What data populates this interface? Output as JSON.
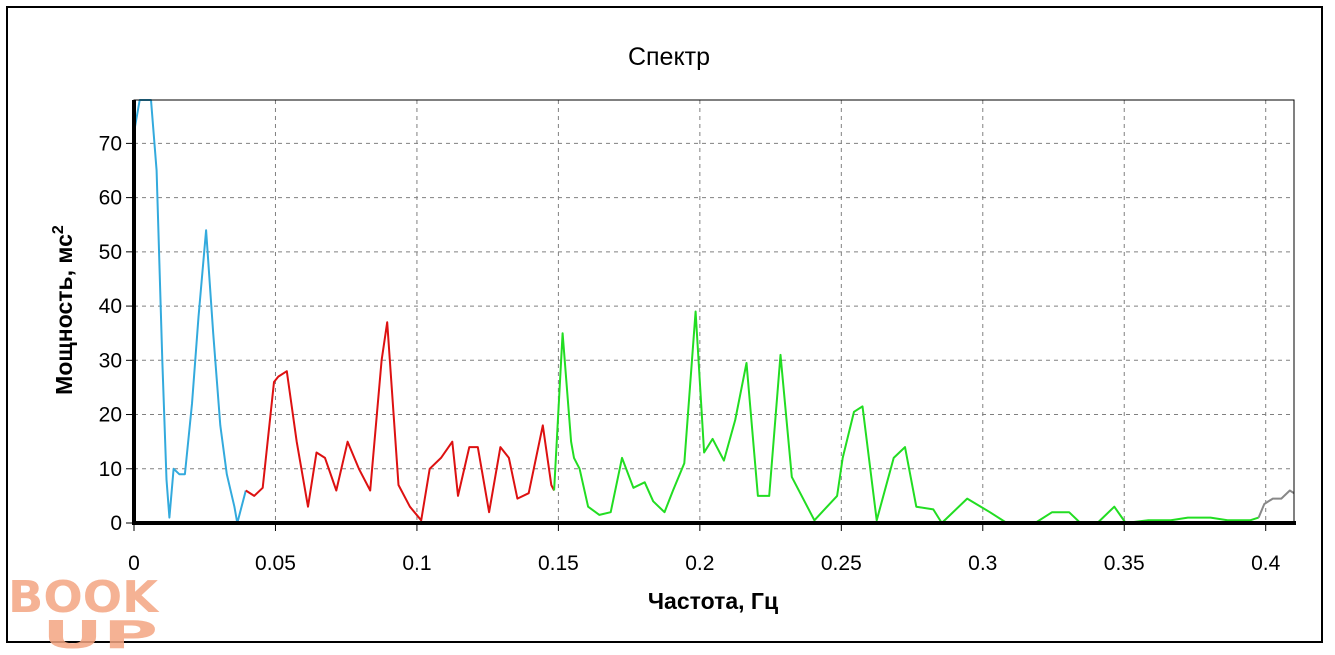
{
  "colors": {
    "vlf": "#33aadd",
    "lf": "#dd1111",
    "hf": "#22dd22",
    "tail": "#888888",
    "watermark": "#f4a582"
  },
  "watermark": {
    "line1": "BOOK",
    "line2": "UP"
  },
  "chart_data": {
    "type": "line",
    "title": "Спектр",
    "xlabel": "Частота, Гц",
    "ylabel": "Мощность, мс",
    "ylabel_superscript": "2",
    "xlim": [
      0,
      0.41
    ],
    "ylim": [
      0,
      78
    ],
    "xticks": [
      0,
      0.05,
      0.1,
      0.15,
      0.2,
      0.25,
      0.3,
      0.35,
      0.4
    ],
    "xtick_labels": [
      "0",
      "0.05",
      "0.1",
      "0.15",
      "0.2",
      "0.25",
      "0.3",
      "0.35",
      "0.4"
    ],
    "yticks": [
      0,
      10,
      20,
      30,
      40,
      50,
      60,
      70
    ],
    "ytick_labels": [
      "0",
      "10",
      "20",
      "30",
      "40",
      "50",
      "60",
      "70"
    ],
    "grid": true,
    "series": [
      {
        "color_key": "vlf",
        "x": [
          0.0,
          0.002,
          0.004,
          0.006,
          0.008,
          0.01,
          0.0115,
          0.0125,
          0.014,
          0.016,
          0.018,
          0.0205,
          0.0228,
          0.0255,
          0.028,
          0.0305,
          0.0328,
          0.0355,
          0.0365,
          0.0395
        ],
        "y": [
          72,
          78,
          78,
          78,
          65,
          30,
          8,
          1,
          10,
          9,
          9,
          22,
          38,
          54,
          35,
          18,
          9,
          3,
          0,
          6
        ]
      },
      {
        "color_key": "lf",
        "x": [
          0.0395,
          0.0425,
          0.0455,
          0.0495,
          0.051,
          0.054,
          0.0575,
          0.0615,
          0.0645,
          0.0675,
          0.0715,
          0.0755,
          0.0795,
          0.0835,
          0.0875,
          0.0895,
          0.0935,
          0.0975,
          0.1015,
          0.1045,
          0.1085,
          0.1125,
          0.1145,
          0.1185,
          0.1215,
          0.1255,
          0.1295,
          0.1325,
          0.1355,
          0.1395,
          0.1445,
          0.1475,
          0.1485
        ],
        "y": [
          6,
          5,
          6.5,
          26,
          27,
          28,
          15,
          3,
          13,
          12,
          6,
          15,
          10,
          6,
          30,
          37,
          7,
          3,
          0.5,
          10,
          12,
          15,
          5,
          14,
          14,
          2,
          14,
          12,
          4.5,
          5.5,
          18,
          7,
          6
        ]
      },
      {
        "color_key": "hf",
        "x": [
          0.1485,
          0.1515,
          0.1545,
          0.1555,
          0.1575,
          0.1605,
          0.1645,
          0.1685,
          0.1725,
          0.1765,
          0.1805,
          0.1835,
          0.1875,
          0.1905,
          0.1945,
          0.1985,
          0.2015,
          0.2045,
          0.2085,
          0.2125,
          0.2165,
          0.2205,
          0.2245,
          0.2285,
          0.2325,
          0.2405,
          0.2485,
          0.2505,
          0.2545,
          0.2575,
          0.2625,
          0.2685,
          0.2725,
          0.2765,
          0.2825,
          0.2855,
          0.2945,
          0.3025,
          0.3085,
          0.3185,
          0.3245,
          0.3305,
          0.3345,
          0.3405,
          0.3465,
          0.3505,
          0.3585,
          0.3665,
          0.3725,
          0.3805,
          0.3865,
          0.3945,
          0.3975
        ],
        "y": [
          6,
          35,
          15,
          12,
          10,
          3,
          1.5,
          2,
          12,
          6.5,
          7.5,
          4,
          2,
          6,
          11,
          39,
          13,
          15.5,
          11.5,
          19,
          29.5,
          5,
          5,
          31,
          8.5,
          0.5,
          5,
          12,
          20.5,
          21.5,
          0.5,
          12,
          14,
          3,
          2.5,
          0,
          4.5,
          2,
          0,
          0,
          2,
          2,
          0,
          0,
          3,
          0,
          0.5,
          0.5,
          1,
          1,
          0.5,
          0.5,
          1
        ]
      },
      {
        "color_key": "tail",
        "x": [
          0.3975,
          0.3995,
          0.4025,
          0.4055,
          0.4085,
          0.41
        ],
        "y": [
          1,
          3.5,
          4.5,
          4.5,
          6,
          5.5
        ]
      }
    ]
  }
}
